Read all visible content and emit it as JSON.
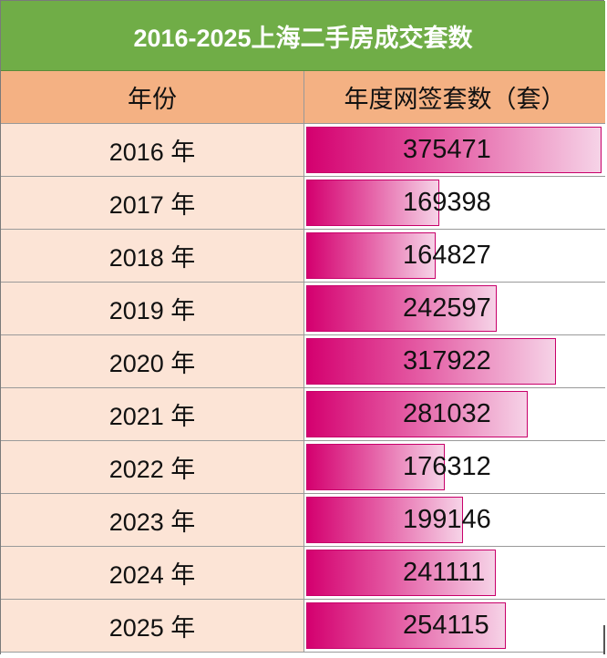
{
  "title": "2016-2025上海二手房成交套数",
  "header": {
    "year_label": "年份",
    "value_label": "年度网签套数（套）"
  },
  "colors": {
    "title_bg": "#70ad47",
    "header_bg": "#f4b183",
    "year_cell_bg": "#fce4d6",
    "bar_start": "#d4006f",
    "bar_end": "#f6d3e7"
  },
  "chart_data": {
    "type": "bar",
    "orientation": "horizontal-in-cell",
    "title": "2016-2025上海二手房成交套数",
    "xlabel": "年份",
    "ylabel": "年度网签套数（套）",
    "categories": [
      "2016 年",
      "2017 年",
      "2018 年",
      "2019 年",
      "2020 年",
      "2021 年",
      "2022 年",
      "2023 年",
      "2024 年",
      "2025 年"
    ],
    "values": [
      375471,
      169398,
      164827,
      242597,
      317922,
      281032,
      176312,
      199146,
      241111,
      254115
    ],
    "value_labels": [
      "375471",
      "169398",
      "164827",
      "242597",
      "317922",
      "281032",
      "176312",
      "199146",
      "241111",
      "254115"
    ],
    "xlim": [
      0,
      375471
    ]
  }
}
